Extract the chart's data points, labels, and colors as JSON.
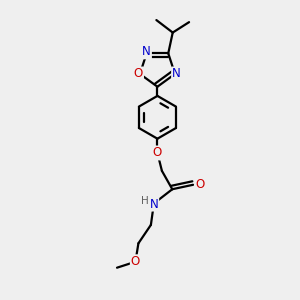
{
  "bg_color": "#efefef",
  "atom_colors": {
    "C": "#000000",
    "N": "#0000cc",
    "O": "#cc0000",
    "H": "#606060"
  },
  "bond_color": "#000000",
  "bond_width": 1.6,
  "font_size_atoms": 8.5,
  "font_size_h": 7.5
}
